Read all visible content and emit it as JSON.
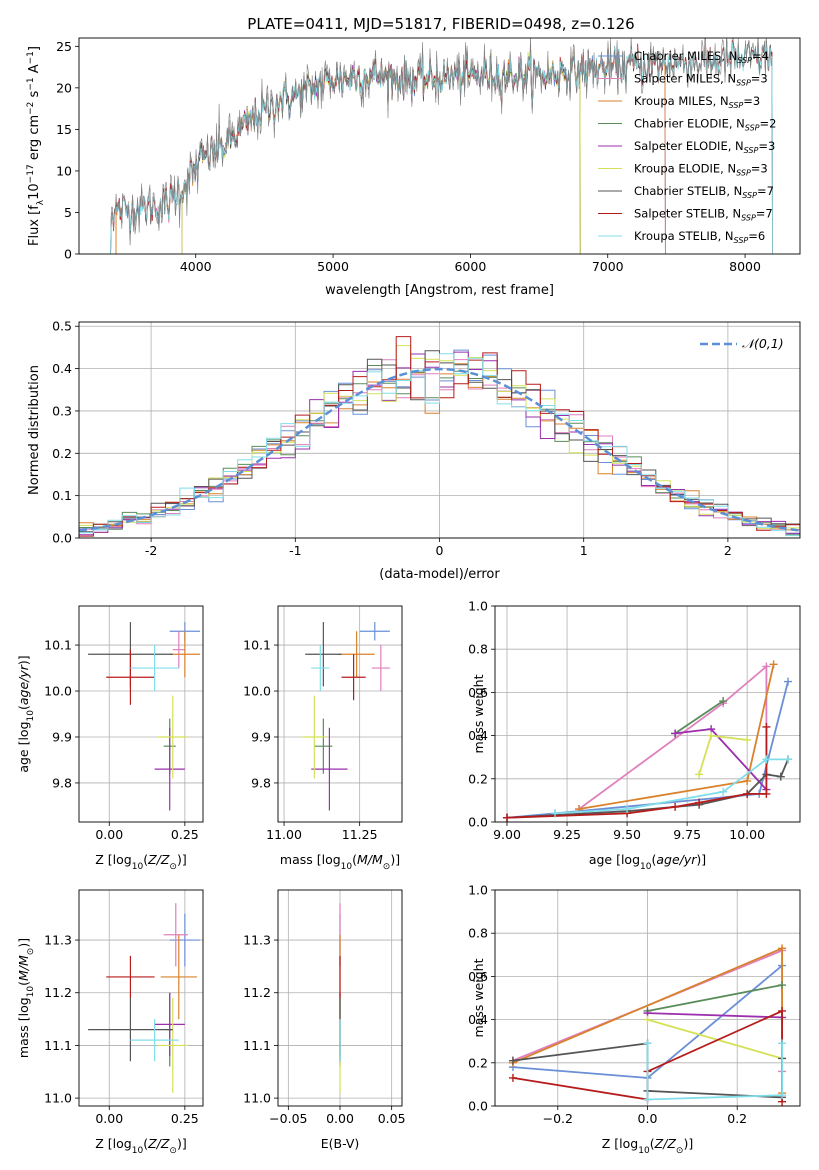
{
  "figure": {
    "title": "PLATE=0411, MJD=51817, FIBERID=0498, z=0.126"
  },
  "chart_data": [
    {
      "id": "spectrum",
      "type": "line",
      "xlabel": "wavelength [Angstrom, rest frame]",
      "ylabel": "Flux [f_λ 10^-17 erg cm^-2 s^-1 A^-1]",
      "xlim": [
        3150,
        8400
      ],
      "ylim": [
        0,
        26
      ],
      "xticks": [
        4000,
        5000,
        6000,
        7000,
        8000
      ],
      "yticks": [
        0,
        5,
        10,
        15,
        20,
        25
      ],
      "grid": false,
      "legend_position": "top-right",
      "continuum": {
        "x": [
          3380,
          3600,
          3800,
          3950,
          4050,
          4200,
          4400,
          4600,
          4800,
          5000,
          5300,
          5600,
          6000,
          6500,
          7000,
          7500,
          8000,
          8200
        ],
        "y": [
          5.0,
          5.5,
          6.0,
          9.0,
          11.5,
          13.0,
          16.0,
          18.5,
          19.5,
          21.0,
          21.5,
          21.0,
          21.5,
          21.5,
          22.5,
          23.0,
          23.5,
          24.0
        ]
      },
      "series": [
        {
          "name": "Chabrier MILES, N_SSP=4",
          "color": "#6a8fd6",
          "x_range": [
            3420,
            7420
          ]
        },
        {
          "name": "Salpeter MILES, N_SSP=3",
          "color": "#e07fbd",
          "x_range": [
            3420,
            7420
          ]
        },
        {
          "name": "Kroupa MILES, N_SSP=3",
          "color": "#d9822b",
          "x_range": [
            3420,
            7420
          ]
        },
        {
          "name": "Chabrier ELODIE, N_SSP=2",
          "color": "#5a8c5a",
          "x_range": [
            3900,
            6800
          ]
        },
        {
          "name": "Salpeter ELODIE, N_SSP=3",
          "color": "#9b2fae",
          "x_range": [
            3900,
            6800
          ]
        },
        {
          "name": "Kroupa ELODIE, N_SSP=3",
          "color": "#d4e157",
          "x_range": [
            3900,
            6800
          ]
        },
        {
          "name": "Chabrier STELIB, N_SSP=7",
          "color": "#555555",
          "x_range": [
            3380,
            8200
          ]
        },
        {
          "name": "Salpeter STELIB, N_SSP=7",
          "color": "#b71c1c",
          "x_range": [
            3380,
            8200
          ]
        },
        {
          "name": "Kroupa STELIB, N_SSP=6",
          "color": "#80deea",
          "x_range": [
            3380,
            8200
          ]
        }
      ],
      "data_line": {
        "color": "#808080",
        "x_range": [
          3380,
          8200
        ]
      }
    },
    {
      "id": "residuals",
      "type": "line",
      "xlabel": "(data-model)/error",
      "ylabel": "Normed distribution",
      "xlim": [
        -2.5,
        2.5
      ],
      "ylim": [
        0,
        0.51
      ],
      "xticks": [
        -2,
        -1,
        0,
        1,
        2
      ],
      "yticks": [
        0.0,
        0.1,
        0.2,
        0.3,
        0.4,
        0.5
      ],
      "grid": true,
      "legend": {
        "label": "𝒩(0,1)",
        "position": "top-right",
        "color": "#5b8fd6"
      },
      "histogram_bin_width": 0.1
    },
    {
      "id": "age-vs-Z",
      "type": "scatter",
      "xlabel": "Z [log10(Z/Z⊙)]",
      "ylabel": "age  [log10(age/yr)]",
      "xlim": [
        -0.1,
        0.31
      ],
      "ylim": [
        9.715,
        10.185
      ],
      "xticks": [
        0,
        0.25
      ],
      "xticklabels": [
        "0.00",
        "0.25"
      ],
      "yticks": [
        9.8,
        9.9,
        10.0,
        10.1
      ],
      "grid": true,
      "points": [
        {
          "color": "#6a8fd6",
          "x": 0.25,
          "xerr": 0.05,
          "y": 10.13,
          "yerr": 0.02
        },
        {
          "color": "#e07fbd",
          "x": 0.23,
          "xerr": 0.02,
          "y": 10.09,
          "yerr": 0.04
        },
        {
          "color": "#d9822b",
          "x": 0.25,
          "xerr": 0.05,
          "y": 10.08,
          "yerr": 0.05
        },
        {
          "color": "#5a8c5a",
          "x": 0.2,
          "xerr": 0.02,
          "y": 9.88,
          "yerr": 0.06
        },
        {
          "color": "#9b2fae",
          "x": 0.2,
          "xerr": 0.05,
          "y": 9.83,
          "yerr": 0.09
        },
        {
          "color": "#d4e157",
          "x": 0.21,
          "xerr": 0.05,
          "y": 9.9,
          "yerr": 0.09
        },
        {
          "color": "#555555",
          "x": 0.07,
          "xerr": 0.14,
          "y": 10.08,
          "yerr": 0.07
        },
        {
          "color": "#b71c1c",
          "x": 0.07,
          "xerr": 0.08,
          "y": 10.03,
          "yerr": 0.06
        },
        {
          "color": "#80deea",
          "x": 0.15,
          "xerr": 0.08,
          "y": 10.05,
          "yerr": 0.05
        }
      ]
    },
    {
      "id": "age-vs-mass",
      "type": "scatter",
      "xlabel": "mass [log10(M/M⊙)]",
      "ylabel": "",
      "xlim": [
        10.98,
        11.39
      ],
      "ylim": [
        9.715,
        10.185
      ],
      "xticks": [
        11.0,
        11.25
      ],
      "xticklabels": [
        "11.00",
        "11.25"
      ],
      "yticks": [
        9.8,
        9.9,
        10.0,
        10.1
      ],
      "grid": true,
      "points": [
        {
          "color": "#6a8fd6",
          "x": 11.3,
          "xerr": 0.05,
          "y": 10.13,
          "yerr": 0.02
        },
        {
          "color": "#e07fbd",
          "x": 11.32,
          "xerr": 0.03,
          "y": 10.05,
          "yerr": 0.05
        },
        {
          "color": "#d9822b",
          "x": 11.24,
          "xerr": 0.06,
          "y": 10.08,
          "yerr": 0.05
        },
        {
          "color": "#5a8c5a",
          "x": 11.13,
          "xerr": 0.03,
          "y": 9.88,
          "yerr": 0.06
        },
        {
          "color": "#9b2fae",
          "x": 11.15,
          "xerr": 0.06,
          "y": 9.83,
          "yerr": 0.09
        },
        {
          "color": "#d4e157",
          "x": 11.1,
          "xerr": 0.04,
          "y": 9.9,
          "yerr": 0.09
        },
        {
          "color": "#555555",
          "x": 11.13,
          "xerr": 0.06,
          "y": 10.08,
          "yerr": 0.07
        },
        {
          "color": "#b71c1c",
          "x": 11.23,
          "xerr": 0.04,
          "y": 10.03,
          "yerr": 0.05
        },
        {
          "color": "#80deea",
          "x": 11.12,
          "xerr": 0.03,
          "y": 10.05,
          "yerr": 0.05
        }
      ]
    },
    {
      "id": "weight-vs-age",
      "type": "line",
      "xlabel": "age  [log10(age/yr)]",
      "ylabel": "mass weight",
      "xlim": [
        8.95,
        10.22
      ],
      "ylim": [
        0,
        1.0
      ],
      "xticks": [
        9.0,
        9.25,
        9.5,
        9.75,
        10.0
      ],
      "xticklabels": [
        "9.00",
        "9.25",
        "9.50",
        "9.75",
        "10.00"
      ],
      "yticks": [
        0.0,
        0.2,
        0.4,
        0.6,
        0.8,
        1.0
      ],
      "grid": true,
      "series": [
        {
          "color": "#6a8fd6",
          "x": [
            9.0,
            9.2,
            10.05,
            10.17
          ],
          "y": [
            0.02,
            0.04,
            0.13,
            0.65
          ]
        },
        {
          "color": "#e07fbd",
          "x": [
            9.3,
            9.9,
            10.08,
            10.08
          ],
          "y": [
            0.06,
            0.55,
            0.72,
            0.2
          ]
        },
        {
          "color": "#d9822b",
          "x": [
            9.3,
            10.0,
            10.11
          ],
          "y": [
            0.06,
            0.19,
            0.73
          ]
        },
        {
          "color": "#5a8c5a",
          "x": [
            9.7,
            9.9
          ],
          "y": [
            0.41,
            0.56
          ]
        },
        {
          "color": "#9b2fae",
          "x": [
            9.7,
            9.85,
            10.08
          ],
          "y": [
            0.41,
            0.43,
            0.15
          ]
        },
        {
          "color": "#d4e157",
          "x": [
            9.8,
            9.85,
            10.0
          ],
          "y": [
            0.22,
            0.4,
            0.38
          ]
        },
        {
          "color": "#555555",
          "x": [
            9.0,
            9.5,
            9.8,
            10.0,
            10.08,
            10.14,
            10.17
          ],
          "y": [
            0.02,
            0.05,
            0.08,
            0.13,
            0.22,
            0.21,
            0.29
          ]
        },
        {
          "color": "#b71c1c",
          "x": [
            9.0,
            9.5,
            9.7,
            9.8,
            10.0,
            10.08,
            10.08
          ],
          "y": [
            0.02,
            0.04,
            0.07,
            0.09,
            0.13,
            0.13,
            0.44
          ]
        },
        {
          "color": "#80deea",
          "x": [
            9.2,
            9.5,
            9.9,
            10.08,
            10.17
          ],
          "y": [
            0.04,
            0.06,
            0.14,
            0.29,
            0.29
          ]
        }
      ]
    },
    {
      "id": "mass-vs-Z",
      "type": "scatter",
      "xlabel": "Z [log10(Z/Z⊙)]",
      "ylabel": "mass [log10(M/M⊙)]",
      "xlim": [
        -0.1,
        0.31
      ],
      "ylim": [
        10.985,
        11.395
      ],
      "xticks": [
        0,
        0.25
      ],
      "xticklabels": [
        "0.00",
        "0.25"
      ],
      "yticks": [
        11.0,
        11.1,
        11.2,
        11.3
      ],
      "grid": true,
      "points": [
        {
          "color": "#6a8fd6",
          "x": 0.25,
          "xerr": 0.05,
          "y": 11.3,
          "yerr": 0.05
        },
        {
          "color": "#e07fbd",
          "x": 0.22,
          "xerr": 0.04,
          "y": 11.31,
          "yerr": 0.06
        },
        {
          "color": "#d9822b",
          "x": 0.23,
          "xerr": 0.06,
          "y": 11.23,
          "yerr": 0.08
        },
        {
          "color": "#5a8c5a",
          "x": 0.2,
          "xerr": 0.01,
          "y": 11.13,
          "yerr": 0.07
        },
        {
          "color": "#9b2fae",
          "x": 0.2,
          "xerr": 0.05,
          "y": 11.14,
          "yerr": 0.06
        },
        {
          "color": "#d4e157",
          "x": 0.21,
          "xerr": 0.05,
          "y": 11.1,
          "yerr": 0.09
        },
        {
          "color": "#555555",
          "x": 0.07,
          "xerr": 0.14,
          "y": 11.13,
          "yerr": 0.06
        },
        {
          "color": "#b71c1c",
          "x": 0.07,
          "xerr": 0.08,
          "y": 11.23,
          "yerr": 0.04
        },
        {
          "color": "#80deea",
          "x": 0.15,
          "xerr": 0.08,
          "y": 11.11,
          "yerr": 0.04
        }
      ]
    },
    {
      "id": "mass-vs-ebv",
      "type": "scatter",
      "xlabel": "E(B-V)",
      "ylabel": "",
      "xlim": [
        -0.06,
        0.06
      ],
      "ylim": [
        10.985,
        11.395
      ],
      "xticks": [
        -0.05,
        0.0,
        0.05
      ],
      "xticklabels": [
        "−0.05",
        "0.00",
        "0.05"
      ],
      "yticks": [
        11.0,
        11.1,
        11.2,
        11.3
      ],
      "grid": true,
      "points": [
        {
          "color": "#6a8fd6",
          "x": 0.0,
          "y": 11.3,
          "yerr": 0.05
        },
        {
          "color": "#e07fbd",
          "x": 0.0,
          "y": 11.31,
          "yerr": 0.06
        },
        {
          "color": "#d9822b",
          "x": 0.0,
          "y": 11.23,
          "yerr": 0.08
        },
        {
          "color": "#5a8c5a",
          "x": 0.0,
          "y": 11.13,
          "yerr": 0.07
        },
        {
          "color": "#9b2fae",
          "x": 0.0,
          "y": 11.14,
          "yerr": 0.06
        },
        {
          "color": "#d4e157",
          "x": 0.0,
          "y": 11.1,
          "yerr": 0.09
        },
        {
          "color": "#555555",
          "x": 0.0,
          "y": 11.13,
          "yerr": 0.06
        },
        {
          "color": "#b71c1c",
          "x": 0.0,
          "y": 11.23,
          "yerr": 0.04
        },
        {
          "color": "#80deea",
          "x": 0.0,
          "y": 11.11,
          "yerr": 0.04
        }
      ]
    },
    {
      "id": "weight-vs-Z",
      "type": "line",
      "xlabel": "Z [log10(Z/Z⊙)]",
      "ylabel": "mass weight",
      "xlim": [
        -0.34,
        0.34
      ],
      "ylim": [
        0,
        1.0
      ],
      "xticks": [
        -0.2,
        0.0,
        0.2
      ],
      "xticklabels": [
        "−0.2",
        "0.0",
        "0.2"
      ],
      "yticks": [
        0.0,
        0.2,
        0.4,
        0.6,
        0.8,
        1.0
      ],
      "grid": true,
      "series": [
        {
          "color": "#6a8fd6",
          "x": [
            -0.3,
            0.0,
            0.3
          ],
          "y": [
            0.18,
            0.13,
            0.65
          ]
        },
        {
          "color": "#e07fbd",
          "x": [
            -0.3,
            0.3,
            0.3
          ],
          "y": [
            0.21,
            0.72,
            0.16
          ]
        },
        {
          "color": "#d9822b",
          "x": [
            -0.3,
            0.3,
            0.3
          ],
          "y": [
            0.2,
            0.73,
            0.06
          ]
        },
        {
          "color": "#5a8c5a",
          "x": [
            0.0,
            0.3
          ],
          "y": [
            0.44,
            0.56
          ]
        },
        {
          "color": "#9b2fae",
          "x": [
            0.0,
            0.3
          ],
          "y": [
            0.43,
            0.41
          ]
        },
        {
          "color": "#d4e157",
          "x": [
            0.0,
            0.3
          ],
          "y": [
            0.4,
            0.22
          ]
        },
        {
          "color": "#555555",
          "x": [
            -0.3,
            0.0,
            0.0,
            0.3,
            0.3
          ],
          "y": [
            0.21,
            0.29,
            0.07,
            0.04,
            0.22
          ]
        },
        {
          "color": "#b71c1c",
          "x": [
            -0.3,
            0.0,
            0.0,
            0.3,
            0.3
          ],
          "y": [
            0.13,
            0.03,
            0.16,
            0.44,
            0.02
          ]
        },
        {
          "color": "#80deea",
          "x": [
            0.0,
            0.0,
            0.3,
            0.3
          ],
          "y": [
            0.29,
            0.03,
            0.05,
            0.29
          ]
        }
      ]
    }
  ]
}
